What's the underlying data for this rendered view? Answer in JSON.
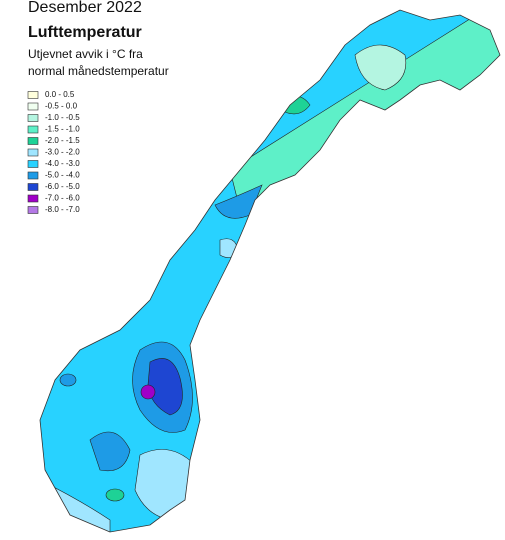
{
  "header": {
    "period": "Desember 2022",
    "title": "Lufttemperatur",
    "subtitle": [
      "Utjevnet avvik i °C fra",
      "normal månedstemperatur"
    ]
  },
  "legend": [
    {
      "label": "0.0 - 0.5",
      "color": "#ffffdc"
    },
    {
      "label": "-0.5 - 0.0",
      "color": "#f0fff0"
    },
    {
      "label": "-1.0 - -0.5",
      "color": "#b4f5e1"
    },
    {
      "label": "-1.5 - -1.0",
      "color": "#5ef0c8"
    },
    {
      "label": "-2.0 - -1.5",
      "color": "#1ed296"
    },
    {
      "label": "-3.0 - -2.0",
      "color": "#a0e6ff"
    },
    {
      "label": "-4.0 - -3.0",
      "color": "#28d2ff"
    },
    {
      "label": "-5.0 - -4.0",
      "color": "#1e9be6"
    },
    {
      "label": "-6.0 - -5.0",
      "color": "#1e46d2"
    },
    {
      "label": "-7.0 - -6.0",
      "color": "#a000c8"
    },
    {
      "label": "-8.0 - -7.0",
      "color": "#b478e6"
    }
  ]
}
